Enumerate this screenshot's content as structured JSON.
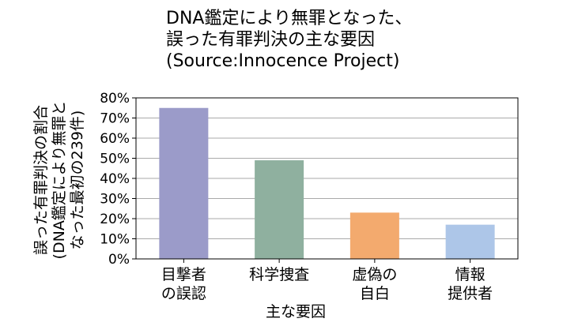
{
  "chart_data": {
    "type": "bar",
    "title_lines": [
      "DNA鑑定により無罪となった、",
      "誤った有罪判決の主な要因",
      "(Source:Innocence Project)"
    ],
    "xlabel": "主な要因",
    "ylabel_lines": [
      "誤った有罪判決の割合",
      "(DNA鑑定により無罪と",
      "なった最初の239件)"
    ],
    "categories": [
      [
        "目撃者",
        "の誤認"
      ],
      [
        "科学捜査"
      ],
      [
        "虚偽の",
        "自白"
      ],
      [
        "情報",
        "提供者"
      ]
    ],
    "values": [
      75,
      49,
      23,
      17
    ],
    "ylim": [
      0,
      80
    ],
    "yticks": [
      0,
      10,
      20,
      30,
      40,
      50,
      60,
      70,
      80
    ],
    "ytick_format": "{v}%",
    "grid": true,
    "legend": "none",
    "colors": [
      "#9b9bc9",
      "#8fb09f",
      "#f3aa6e",
      "#adc6e8"
    ]
  }
}
